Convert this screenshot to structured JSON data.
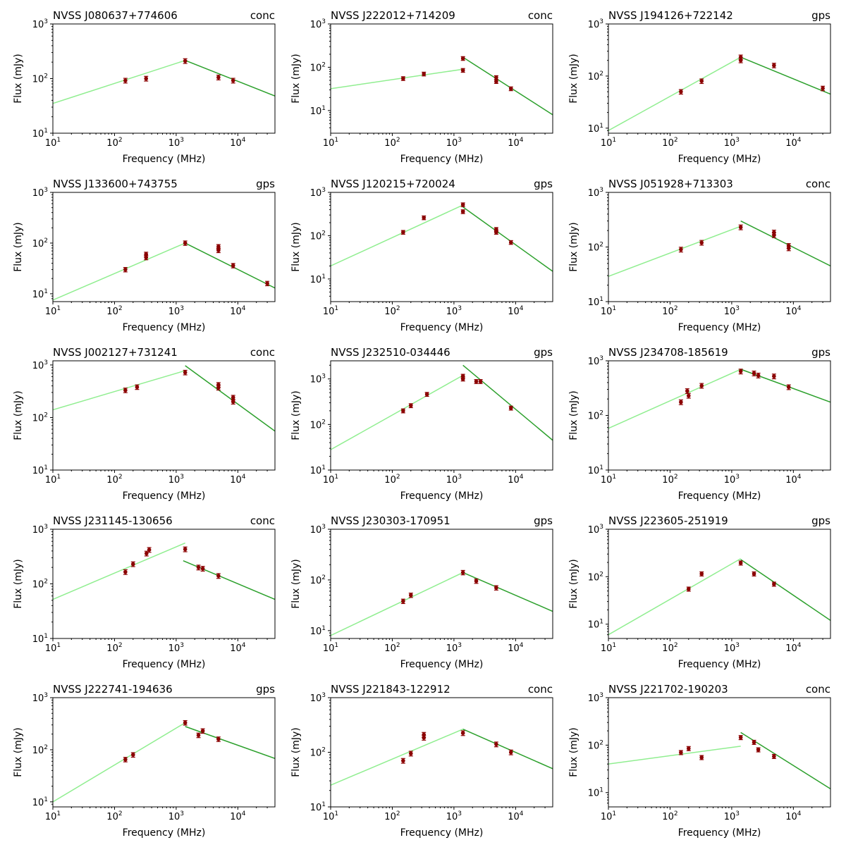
{
  "figure": {
    "xlabel": "Frequency (MHz)",
    "ylabel": "Flux (mJy)"
  },
  "colors": {
    "data_points": "#8b0000",
    "fit_low": "#90ee90",
    "fit_high": "#2ca02c",
    "axes": "#000000"
  },
  "chart_data": [
    {
      "type": "scatter",
      "title": "NVSS J080637+774606",
      "class_label": "conc",
      "xscale": "log",
      "yscale": "log",
      "xlim": [
        10,
        40000
      ],
      "ylim": [
        10,
        1000
      ],
      "xticks": [
        "10^1",
        "10^2",
        "10^3",
        "10^4"
      ],
      "yticks": [
        "10^1",
        "10^2",
        "10^3"
      ],
      "points": [
        {
          "x": 150,
          "y": 92,
          "err": 0.1
        },
        {
          "x": 325,
          "y": 100,
          "err": 0.1
        },
        {
          "x": 1400,
          "y": 210,
          "err": 0.1
        },
        {
          "x": 4850,
          "y": 105,
          "err": 0.1
        },
        {
          "x": 8400,
          "y": 92,
          "err": 0.1
        }
      ],
      "fit_low": [
        [
          10,
          35
        ],
        [
          1400,
          215
        ]
      ],
      "fit_high": [
        [
          1400,
          215
        ],
        [
          40000,
          48
        ]
      ]
    },
    {
      "type": "scatter",
      "title": "NVSS J222012+714209",
      "class_label": "conc",
      "xscale": "log",
      "yscale": "log",
      "xlim": [
        10,
        40000
      ],
      "ylim": [
        3,
        1000
      ],
      "xticks": [
        "10^1",
        "10^2",
        "10^3",
        "10^4"
      ],
      "yticks": [
        "10^1",
        "10^2",
        "10^3"
      ],
      "points": [
        {
          "x": 150,
          "y": 55,
          "err": 0.1
        },
        {
          "x": 325,
          "y": 70,
          "err": 0.1
        },
        {
          "x": 1400,
          "y": 85,
          "err": 0.1
        },
        {
          "x": 1400,
          "y": 160,
          "err": 0.1
        },
        {
          "x": 4850,
          "y": 58,
          "err": 0.1
        },
        {
          "x": 4850,
          "y": 47,
          "err": 0.1
        },
        {
          "x": 8400,
          "y": 32,
          "err": 0.1
        }
      ],
      "fit_low": [
        [
          10,
          32
        ],
        [
          1400,
          90
        ]
      ],
      "fit_high": [
        [
          1400,
          170
        ],
        [
          40000,
          8
        ]
      ]
    },
    {
      "type": "scatter",
      "title": "NVSS J194126+722142",
      "class_label": "gps",
      "xscale": "log",
      "yscale": "log",
      "xlim": [
        10,
        40000
      ],
      "ylim": [
        8,
        1000
      ],
      "xticks": [
        "10^1",
        "10^2",
        "10^3",
        "10^4"
      ],
      "yticks": [
        "10^1",
        "10^2",
        "10^3"
      ],
      "points": [
        {
          "x": 150,
          "y": 50,
          "err": 0.1
        },
        {
          "x": 325,
          "y": 80,
          "err": 0.1
        },
        {
          "x": 1400,
          "y": 230,
          "err": 0.1
        },
        {
          "x": 1400,
          "y": 200,
          "err": 0.1
        },
        {
          "x": 4850,
          "y": 160,
          "err": 0.1
        },
        {
          "x": 30000,
          "y": 58,
          "err": 0.1
        }
      ],
      "fit_low": [
        [
          10,
          9
        ],
        [
          1400,
          230
        ]
      ],
      "fit_high": [
        [
          1400,
          230
        ],
        [
          40000,
          45
        ]
      ]
    },
    {
      "type": "scatter",
      "title": "NVSS J133600+743755",
      "class_label": "gps",
      "xscale": "log",
      "yscale": "log",
      "xlim": [
        10,
        40000
      ],
      "ylim": [
        7,
        1000
      ],
      "xticks": [
        "10^1",
        "10^2",
        "10^3",
        "10^4"
      ],
      "yticks": [
        "10^1",
        "10^2",
        "10^3"
      ],
      "points": [
        {
          "x": 150,
          "y": 30,
          "err": 0.1
        },
        {
          "x": 325,
          "y": 52,
          "err": 0.1
        },
        {
          "x": 325,
          "y": 60,
          "err": 0.1
        },
        {
          "x": 1400,
          "y": 100,
          "err": 0.1
        },
        {
          "x": 4850,
          "y": 85,
          "err": 0.1
        },
        {
          "x": 4850,
          "y": 72,
          "err": 0.1
        },
        {
          "x": 8400,
          "y": 36,
          "err": 0.1
        },
        {
          "x": 30000,
          "y": 16,
          "err": 0.1
        }
      ],
      "fit_low": [
        [
          10,
          7.5
        ],
        [
          1400,
          100
        ]
      ],
      "fit_high": [
        [
          1400,
          100
        ],
        [
          40000,
          13
        ]
      ]
    },
    {
      "type": "scatter",
      "title": "NVSS J120215+720024",
      "class_label": "gps",
      "xscale": "log",
      "yscale": "log",
      "xlim": [
        10,
        40000
      ],
      "ylim": [
        3,
        1000
      ],
      "xticks": [
        "10^1",
        "10^2",
        "10^3",
        "10^4"
      ],
      "yticks": [
        "10^1",
        "10^2",
        "10^3"
      ],
      "points": [
        {
          "x": 150,
          "y": 120,
          "err": 0.1
        },
        {
          "x": 325,
          "y": 260,
          "err": 0.1
        },
        {
          "x": 1400,
          "y": 520,
          "err": 0.1
        },
        {
          "x": 1400,
          "y": 360,
          "err": 0.1
        },
        {
          "x": 4850,
          "y": 140,
          "err": 0.1
        },
        {
          "x": 4850,
          "y": 120,
          "err": 0.1
        },
        {
          "x": 8400,
          "y": 70,
          "err": 0.1
        }
      ],
      "fit_low": [
        [
          10,
          20
        ],
        [
          1400,
          510
        ]
      ],
      "fit_high": [
        [
          1400,
          460
        ],
        [
          40000,
          15
        ]
      ]
    },
    {
      "type": "scatter",
      "title": "NVSS J051928+713303",
      "class_label": "conc",
      "xscale": "log",
      "yscale": "log",
      "xlim": [
        10,
        40000
      ],
      "ylim": [
        10,
        1000
      ],
      "xticks": [
        "10^1",
        "10^2",
        "10^3",
        "10^4"
      ],
      "yticks": [
        "10^1",
        "10^2",
        "10^3"
      ],
      "points": [
        {
          "x": 150,
          "y": 90,
          "err": 0.1
        },
        {
          "x": 325,
          "y": 120,
          "err": 0.1
        },
        {
          "x": 1400,
          "y": 230,
          "err": 0.1
        },
        {
          "x": 4850,
          "y": 185,
          "err": 0.1
        },
        {
          "x": 4850,
          "y": 165,
          "err": 0.1
        },
        {
          "x": 8400,
          "y": 105,
          "err": 0.1
        },
        {
          "x": 8400,
          "y": 95,
          "err": 0.1
        }
      ],
      "fit_low": [
        [
          10,
          29
        ],
        [
          1400,
          240
        ]
      ],
      "fit_high": [
        [
          1400,
          300
        ],
        [
          40000,
          45
        ]
      ]
    },
    {
      "type": "scatter",
      "title": "NVSS J002127+731241",
      "class_label": "conc",
      "xscale": "log",
      "yscale": "log",
      "xlim": [
        10,
        40000
      ],
      "ylim": [
        10,
        1200
      ],
      "xticks": [
        "10^1",
        "10^2",
        "10^3",
        "10^4"
      ],
      "yticks": [
        "10^1",
        "10^2",
        "10^3"
      ],
      "points": [
        {
          "x": 150,
          "y": 330,
          "err": 0.1
        },
        {
          "x": 232,
          "y": 380,
          "err": 0.1
        },
        {
          "x": 1400,
          "y": 720,
          "err": 0.1
        },
        {
          "x": 4850,
          "y": 420,
          "err": 0.1
        },
        {
          "x": 4850,
          "y": 370,
          "err": 0.1
        },
        {
          "x": 8400,
          "y": 240,
          "err": 0.1
        },
        {
          "x": 8400,
          "y": 200,
          "err": 0.1
        }
      ],
      "fit_low": [
        [
          10,
          140
        ],
        [
          1400,
          780
        ]
      ],
      "fit_high": [
        [
          1400,
          970
        ],
        [
          40000,
          55
        ]
      ]
    },
    {
      "type": "scatter",
      "title": "NVSS J232510-034446",
      "class_label": "gps",
      "xscale": "log",
      "yscale": "log",
      "xlim": [
        10,
        40000
      ],
      "ylim": [
        10,
        2500
      ],
      "xticks": [
        "10^1",
        "10^2",
        "10^3",
        "10^4"
      ],
      "yticks": [
        "10^1",
        "10^2",
        "10^3"
      ],
      "points": [
        {
          "x": 150,
          "y": 200,
          "err": 0.1
        },
        {
          "x": 200,
          "y": 260,
          "err": 0.1
        },
        {
          "x": 365,
          "y": 460,
          "err": 0.1
        },
        {
          "x": 1400,
          "y": 1150,
          "err": 0.1
        },
        {
          "x": 1400,
          "y": 1000,
          "err": 0.1
        },
        {
          "x": 2300,
          "y": 880,
          "err": 0.1
        },
        {
          "x": 2700,
          "y": 880,
          "err": 0.1
        },
        {
          "x": 8400,
          "y": 230,
          "err": 0.1
        }
      ],
      "fit_low": [
        [
          10,
          28
        ],
        [
          1400,
          1200
        ]
      ],
      "fit_high": [
        [
          1400,
          2000
        ],
        [
          40000,
          45
        ]
      ]
    },
    {
      "type": "scatter",
      "title": "NVSS J234708-185619",
      "class_label": "gps",
      "xscale": "log",
      "yscale": "log",
      "xlim": [
        10,
        40000
      ],
      "ylim": [
        10,
        1000
      ],
      "xticks": [
        "10^1",
        "10^2",
        "10^3",
        "10^4"
      ],
      "yticks": [
        "10^1",
        "10^2",
        "10^3"
      ],
      "points": [
        {
          "x": 150,
          "y": 175,
          "err": 0.1
        },
        {
          "x": 190,
          "y": 280,
          "err": 0.1
        },
        {
          "x": 200,
          "y": 230,
          "err": 0.1
        },
        {
          "x": 325,
          "y": 350,
          "err": 0.1
        },
        {
          "x": 1400,
          "y": 640,
          "err": 0.1
        },
        {
          "x": 2300,
          "y": 590,
          "err": 0.1
        },
        {
          "x": 2700,
          "y": 540,
          "err": 0.1
        },
        {
          "x": 4850,
          "y": 520,
          "err": 0.1
        },
        {
          "x": 8400,
          "y": 330,
          "err": 0.1
        }
      ],
      "fit_low": [
        [
          10,
          58
        ],
        [
          1400,
          700
        ]
      ],
      "fit_high": [
        [
          1400,
          700
        ],
        [
          40000,
          175
        ]
      ]
    },
    {
      "type": "scatter",
      "title": "NVSS J231145-130656",
      "class_label": "conc",
      "xscale": "log",
      "yscale": "log",
      "xlim": [
        10,
        40000
      ],
      "ylim": [
        10,
        1000
      ],
      "xticks": [
        "10^1",
        "10^2",
        "10^3",
        "10^4"
      ],
      "yticks": [
        "10^1",
        "10^2",
        "10^3"
      ],
      "points": [
        {
          "x": 150,
          "y": 165,
          "err": 0.1
        },
        {
          "x": 200,
          "y": 230,
          "err": 0.1
        },
        {
          "x": 330,
          "y": 360,
          "err": 0.1
        },
        {
          "x": 365,
          "y": 420,
          "err": 0.1
        },
        {
          "x": 1400,
          "y": 430,
          "err": 0.1
        },
        {
          "x": 2300,
          "y": 200,
          "err": 0.1
        },
        {
          "x": 2700,
          "y": 190,
          "err": 0.1
        },
        {
          "x": 4850,
          "y": 140,
          "err": 0.1
        }
      ],
      "fit_low": [
        [
          10,
          52
        ],
        [
          1400,
          560
        ]
      ],
      "fit_high": [
        [
          1300,
          265
        ],
        [
          40000,
          52
        ]
      ]
    },
    {
      "type": "scatter",
      "title": "NVSS J230303-170951",
      "class_label": "gps",
      "xscale": "log",
      "yscale": "log",
      "xlim": [
        10,
        40000
      ],
      "ylim": [
        7,
        1000
      ],
      "xticks": [
        "10^1",
        "10^2",
        "10^3",
        "10^4"
      ],
      "yticks": [
        "10^1",
        "10^2",
        "10^3"
      ],
      "points": [
        {
          "x": 150,
          "y": 38,
          "err": 0.1
        },
        {
          "x": 200,
          "y": 50,
          "err": 0.1
        },
        {
          "x": 1400,
          "y": 140,
          "err": 0.1
        },
        {
          "x": 2300,
          "y": 95,
          "err": 0.1
        },
        {
          "x": 4850,
          "y": 70,
          "err": 0.1
        }
      ],
      "fit_low": [
        [
          10,
          8
        ],
        [
          1400,
          140
        ]
      ],
      "fit_high": [
        [
          1400,
          140
        ],
        [
          40000,
          24
        ]
      ]
    },
    {
      "type": "scatter",
      "title": "NVSS J223605-251919",
      "class_label": "gps",
      "xscale": "log",
      "yscale": "log",
      "xlim": [
        10,
        40000
      ],
      "ylim": [
        5,
        1000
      ],
      "xticks": [
        "10^1",
        "10^2",
        "10^3",
        "10^4"
      ],
      "yticks": [
        "10^1",
        "10^2",
        "10^3"
      ],
      "points": [
        {
          "x": 200,
          "y": 55,
          "err": 0.1
        },
        {
          "x": 325,
          "y": 115,
          "err": 0.1
        },
        {
          "x": 1400,
          "y": 195,
          "err": 0.1
        },
        {
          "x": 2300,
          "y": 115,
          "err": 0.1
        },
        {
          "x": 4850,
          "y": 70,
          "err": 0.1
        }
      ],
      "fit_low": [
        [
          10,
          6
        ],
        [
          1400,
          240
        ]
      ],
      "fit_high": [
        [
          1400,
          230
        ],
        [
          40000,
          12
        ]
      ]
    },
    {
      "type": "scatter",
      "title": "NVSS J222741-194636",
      "class_label": "gps",
      "xscale": "log",
      "yscale": "log",
      "xlim": [
        10,
        40000
      ],
      "ylim": [
        8,
        1000
      ],
      "xticks": [
        "10^1",
        "10^2",
        "10^3",
        "10^4"
      ],
      "yticks": [
        "10^1",
        "10^2",
        "10^3"
      ],
      "points": [
        {
          "x": 150,
          "y": 65,
          "err": 0.1
        },
        {
          "x": 200,
          "y": 80,
          "err": 0.1
        },
        {
          "x": 1400,
          "y": 330,
          "err": 0.1
        },
        {
          "x": 2300,
          "y": 190,
          "err": 0.1
        },
        {
          "x": 2700,
          "y": 230,
          "err": 0.1
        },
        {
          "x": 4850,
          "y": 160,
          "err": 0.1
        }
      ],
      "fit_low": [
        [
          10,
          10
        ],
        [
          1400,
          330
        ]
      ],
      "fit_high": [
        [
          1400,
          280
        ],
        [
          40000,
          68
        ]
      ]
    },
    {
      "type": "scatter",
      "title": "NVSS J221843-122912",
      "class_label": "conc",
      "xscale": "log",
      "yscale": "log",
      "xlim": [
        10,
        40000
      ],
      "ylim": [
        10,
        1000
      ],
      "xticks": [
        "10^1",
        "10^2",
        "10^3",
        "10^4"
      ],
      "yticks": [
        "10^1",
        "10^2",
        "10^3"
      ],
      "points": [
        {
          "x": 150,
          "y": 70,
          "err": 0.1
        },
        {
          "x": 200,
          "y": 95,
          "err": 0.1
        },
        {
          "x": 325,
          "y": 210,
          "err": 0.1
        },
        {
          "x": 325,
          "y": 185,
          "err": 0.1
        },
        {
          "x": 1400,
          "y": 225,
          "err": 0.1
        },
        {
          "x": 4850,
          "y": 140,
          "err": 0.1
        },
        {
          "x": 8400,
          "y": 100,
          "err": 0.1
        }
      ],
      "fit_low": [
        [
          10,
          25
        ],
        [
          1400,
          265
        ]
      ],
      "fit_high": [
        [
          1400,
          265
        ],
        [
          40000,
          50
        ]
      ]
    },
    {
      "type": "scatter",
      "title": "NVSS J221702-190203",
      "class_label": "conc",
      "xscale": "log",
      "yscale": "log",
      "xlim": [
        10,
        40000
      ],
      "ylim": [
        5,
        1000
      ],
      "xticks": [
        "10^1",
        "10^2",
        "10^3",
        "10^4"
      ],
      "yticks": [
        "10^1",
        "10^2",
        "10^3"
      ],
      "points": [
        {
          "x": 150,
          "y": 70,
          "err": 0.1
        },
        {
          "x": 200,
          "y": 85,
          "err": 0.1
        },
        {
          "x": 325,
          "y": 55,
          "err": 0.1
        },
        {
          "x": 1400,
          "y": 145,
          "err": 0.1
        },
        {
          "x": 2300,
          "y": 115,
          "err": 0.1
        },
        {
          "x": 2700,
          "y": 80,
          "err": 0.1
        },
        {
          "x": 4850,
          "y": 58,
          "err": 0.1
        }
      ],
      "fit_low": [
        [
          10,
          40
        ],
        [
          1400,
          95
        ]
      ],
      "fit_high": [
        [
          1400,
          185
        ],
        [
          40000,
          12
        ]
      ]
    }
  ]
}
